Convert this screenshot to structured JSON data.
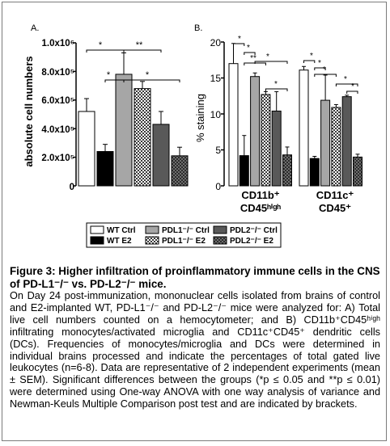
{
  "panelA": {
    "letter": "A.",
    "ylabel": "absolute cell numbers",
    "ytick_labels": [
      "0",
      "2.0x10⁵",
      "4.0x10⁵",
      "6.0x10⁵",
      "8.0x10⁵",
      "1.0x10⁶"
    ],
    "sig_labels": [
      "*",
      "**",
      "*",
      "*"
    ]
  },
  "panelB": {
    "letter": "B.",
    "ylabel": "% staining",
    "ytick_labels": [
      "0",
      "5",
      "10",
      "15",
      "20"
    ],
    "group1_label": [
      "CD11b⁺",
      "CD45ʰⁱᵍʰ"
    ],
    "group2_label": [
      "CD11c⁺",
      "CD45⁺"
    ],
    "sig_labels": [
      "*",
      "*",
      "**",
      "*",
      "*",
      "*",
      "*",
      "*",
      "*",
      "*"
    ]
  },
  "legend": {
    "wt_ctrl": "WT Ctrl",
    "wt_e2": "WT E2",
    "pdl1_ctrl": "PDL1⁻/⁻ Ctrl",
    "pdl1_e2": "PDL1⁻/⁻ E2",
    "pdl2_ctrl": "PDL2⁻/⁻ Ctrl",
    "pdl2_e2": "PDL2⁻/⁻ E2"
  },
  "caption": {
    "title": "Figure 3: Higher infiltration of proinflammatory immune cells in the CNS of PD-L1⁻/⁻ vs. PD-L2⁻/⁻ mice.",
    "body": [
      "On Day 24 post-immunization, mononuclear cells isolated from brains of control and E2-implanted WT, PD-L1⁻/⁻ and PD-L2⁻/⁻ mice were analyzed for: A) Total live cell numbers counted on a hemocytometer; and B) CD11b⁺CD45ʰⁱᵍʰ infiltrating monocytes/activated microglia and CD11c⁺CD45⁺ dendritic cells (DCs). Frequencies of monocytes/microglia and DCs were determined in individual brains processed and indicate the percentages of total gated live leukocytes (n=6-8). Data are representative of 2 independent experiments (mean ± SEM). Significant differences between the groups (*p ≤ 0.05 and **p ≤ 0.01) were determined using One-way ANOVA with one way analysis of variance and Newman-Keuls Multiple Comparison post test and are indicated by brackets."
    ]
  },
  "chart_data": [
    {
      "type": "bar",
      "panel": "A",
      "ylabel": "absolute cell numbers",
      "ylim": [
        0,
        1000000
      ],
      "categories": [
        "WT Ctrl",
        "WT E2",
        "PDL1-/- Ctrl",
        "PDL1-/- E2",
        "PDL2-/- Ctrl",
        "PDL2-/- E2"
      ],
      "values": [
        520000,
        240000,
        780000,
        680000,
        430000,
        210000
      ],
      "errors": [
        90000,
        50000,
        150000,
        50000,
        90000,
        60000
      ],
      "fills": [
        "#ffffff",
        "#000000",
        "#a6a6a6",
        "pattern-check",
        "#595959",
        "pattern-dark"
      ],
      "brackets": [
        {
          "from": 0,
          "to": 2,
          "label": "*"
        },
        {
          "from": 2,
          "to": 4,
          "label": "**"
        },
        {
          "from": 1,
          "to": 2,
          "label": "*"
        },
        {
          "from": 2,
          "to": 5,
          "label": "*"
        }
      ]
    },
    {
      "type": "bar",
      "panel": "B",
      "ylabel": "% staining",
      "ylim": [
        0,
        20
      ],
      "groups": [
        "CD11b+ CD45high",
        "CD11c+ CD45+"
      ],
      "series": [
        {
          "name": "WT Ctrl",
          "values": [
            17.0,
            16.1
          ],
          "errors": [
            2.8,
            0.5
          ]
        },
        {
          "name": "WT E2",
          "values": [
            4.2,
            3.8
          ],
          "errors": [
            2.8,
            0.3
          ]
        },
        {
          "name": "PDL1-/- Ctrl",
          "values": [
            15.2,
            11.9
          ],
          "errors": [
            0.5,
            3.5
          ]
        },
        {
          "name": "PDL1-/- E2",
          "values": [
            12.7,
            10.9
          ],
          "errors": [
            0.4,
            0.4
          ]
        },
        {
          "name": "PDL2-/- Ctrl",
          "values": [
            10.4,
            12.4
          ],
          "errors": [
            2.7,
            0.2
          ]
        },
        {
          "name": "PDL2-/- E2",
          "values": [
            4.3,
            4.0
          ],
          "errors": [
            1.1,
            0.4
          ]
        }
      ],
      "brackets": [
        {
          "group": 0,
          "from": 0,
          "to": 1,
          "label": "*"
        },
        {
          "group": 0,
          "from": 1,
          "to": 2,
          "label": "*"
        },
        {
          "group": 0,
          "from": 1,
          "to": 3,
          "label": "**"
        },
        {
          "group": 0,
          "from": 2,
          "to": 5,
          "label": "*"
        },
        {
          "group": 0,
          "from": 3,
          "to": 5,
          "label": "*"
        },
        {
          "group": 1,
          "from": 0,
          "to": 1,
          "label": "*"
        },
        {
          "group": 1,
          "from": 1,
          "to": 2,
          "label": "*"
        },
        {
          "group": 1,
          "from": 1,
          "to": 3,
          "label": "*"
        },
        {
          "group": 1,
          "from": 3,
          "to": 5,
          "label": "*"
        },
        {
          "group": 1,
          "from": 4,
          "to": 5,
          "label": "*"
        }
      ]
    }
  ]
}
